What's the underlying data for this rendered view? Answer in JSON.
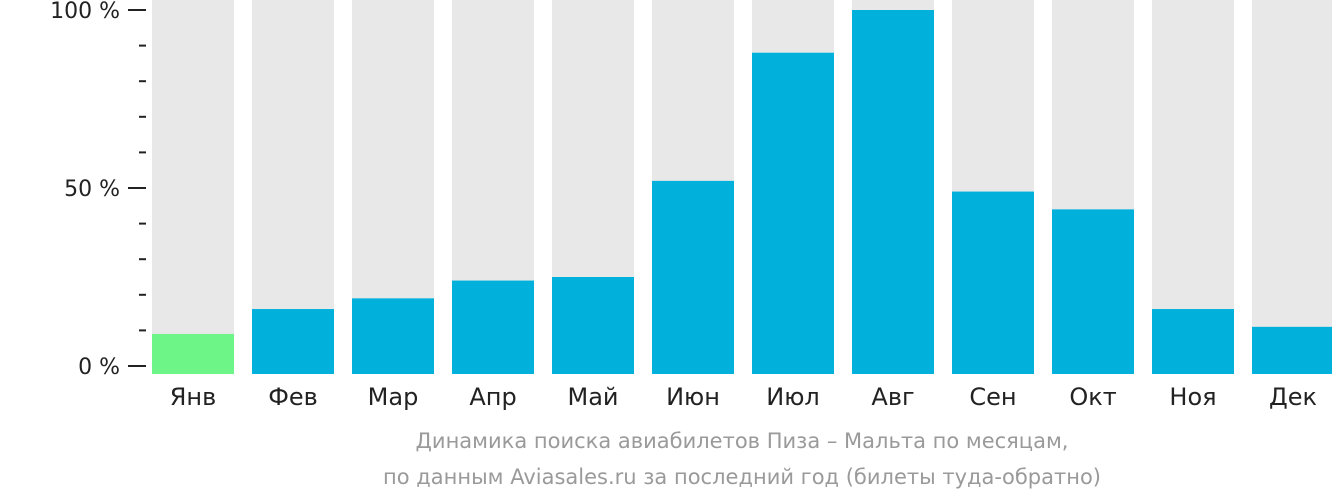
{
  "chart_data": {
    "type": "bar",
    "categories": [
      "Янв",
      "Фев",
      "Мар",
      "Апр",
      "Май",
      "Июн",
      "Июл",
      "Авг",
      "Сен",
      "Окт",
      "Ноя",
      "Дек"
    ],
    "values": [
      9,
      16,
      19,
      24,
      25,
      52,
      88,
      100,
      49,
      44,
      16,
      11
    ],
    "ylim": [
      0,
      100
    ],
    "yticks": [
      0,
      50,
      100
    ],
    "ytick_labels": [
      "0 %",
      "50 %",
      "100 %"
    ],
    "minor_ticks_per_major": 5,
    "highlight_index": 0,
    "grid": false,
    "colors": {
      "bar": "#02b0dc",
      "highlight": "#6ef587",
      "track": "#e8e8e8",
      "axis": "#222222"
    }
  },
  "caption": {
    "line1": "Динамика поиска авиабилетов Пиза – Мальта по месяцам,",
    "line2": "по данным Aviasales.ru за последний год (билеты туда-обратно)"
  }
}
